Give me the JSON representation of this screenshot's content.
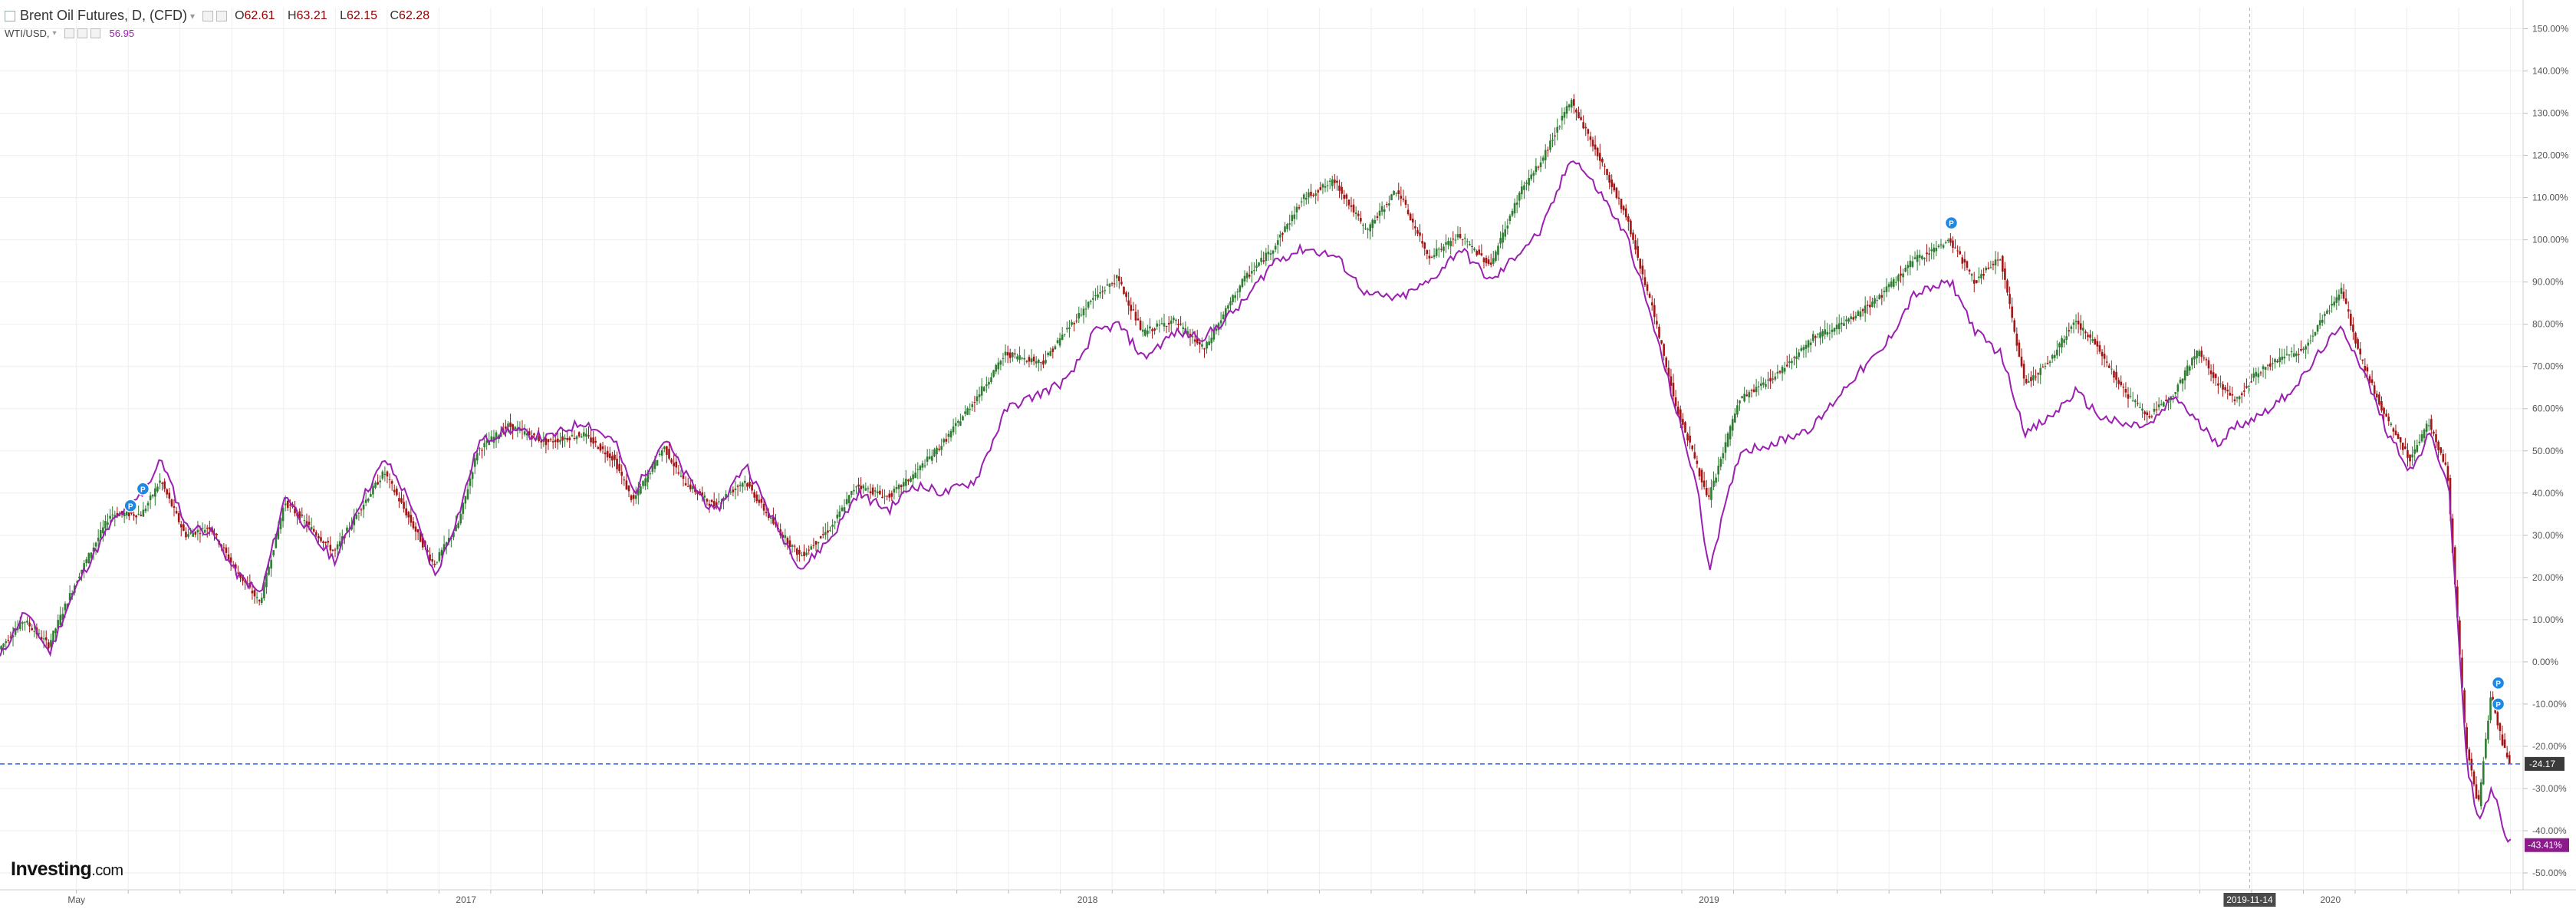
{
  "header": {
    "title": "Brent Oil Futures, D, (CFD)",
    "open_label": "O",
    "open": "62.61",
    "high_label": "H",
    "high": "63.21",
    "low_label": "L",
    "low": "62.15",
    "close_label": "C",
    "close": "62.28"
  },
  "compare": {
    "symbol": "WTI/USD,",
    "value": "56.95"
  },
  "logo": {
    "name": "Investing",
    "suffix": ".com"
  },
  "colors": {
    "up": "#2e7d32",
    "down": "#a31515",
    "compare_line": "#9b1fb0",
    "price_line": "#2962ff",
    "grid": "#eeeeee"
  },
  "chart_data": {
    "type": "line",
    "y_unit": "percent change",
    "y_ticks": [
      "150.00%",
      "140.00%",
      "130.00%",
      "120.00%",
      "110.00%",
      "100.00%",
      "90.00%",
      "80.00%",
      "70.00%",
      "60.00%",
      "50.00%",
      "40.00%",
      "30.00%",
      "20.00%",
      "10.00%",
      "0.00%",
      "-10.00%",
      "-20.00%",
      "-30.00%",
      "-40.00%",
      "-50.00%"
    ],
    "ylim": [
      -54,
      155
    ],
    "x_tick_labels": [
      {
        "label": "May",
        "x": 0.123
      },
      {
        "label": "2017",
        "x": 0.75
      },
      {
        "label": "2018",
        "x": 1.75
      },
      {
        "label": "2019",
        "x": 2.75
      },
      {
        "label": "2020",
        "x": 3.75
      }
    ],
    "x_range": [
      0.0,
      4.06
    ],
    "crosshair": {
      "label": "2019-11-14",
      "x": 3.62
    },
    "current_price_label": "-24.17",
    "compare_label": "-43.41%",
    "markers": [
      {
        "x": 0.23,
        "y": 41,
        "label": "P"
      },
      {
        "x": 0.21,
        "y": 37,
        "label": "P"
      },
      {
        "x": 3.14,
        "y": 104,
        "label": "P"
      },
      {
        "x": 4.02,
        "y": -5,
        "label": "P"
      },
      {
        "x": 4.02,
        "y": -10,
        "label": "P"
      }
    ],
    "series": [
      {
        "name": "Brent Oil Futures",
        "points": [
          [
            0.0,
            3
          ],
          [
            0.04,
            10
          ],
          [
            0.08,
            4
          ],
          [
            0.1,
            11
          ],
          [
            0.13,
            21
          ],
          [
            0.18,
            35
          ],
          [
            0.23,
            35
          ],
          [
            0.26,
            43
          ],
          [
            0.3,
            30
          ],
          [
            0.34,
            32
          ],
          [
            0.38,
            22
          ],
          [
            0.42,
            14
          ],
          [
            0.46,
            38
          ],
          [
            0.5,
            32
          ],
          [
            0.54,
            26
          ],
          [
            0.58,
            36
          ],
          [
            0.62,
            45
          ],
          [
            0.66,
            34
          ],
          [
            0.7,
            23
          ],
          [
            0.74,
            33
          ],
          [
            0.77,
            50
          ],
          [
            0.82,
            56
          ],
          [
            0.88,
            52
          ],
          [
            0.94,
            54
          ],
          [
            0.99,
            48
          ],
          [
            1.02,
            38
          ],
          [
            1.07,
            51
          ],
          [
            1.1,
            43
          ],
          [
            1.15,
            37
          ],
          [
            1.2,
            43
          ],
          [
            1.25,
            32
          ],
          [
            1.29,
            25
          ],
          [
            1.34,
            32
          ],
          [
            1.38,
            42
          ],
          [
            1.43,
            39
          ],
          [
            1.47,
            44
          ],
          [
            1.52,
            52
          ],
          [
            1.57,
            62
          ],
          [
            1.62,
            73
          ],
          [
            1.68,
            71
          ],
          [
            1.72,
            79
          ],
          [
            1.76,
            86
          ],
          [
            1.8,
            91
          ],
          [
            1.84,
            78
          ],
          [
            1.89,
            81
          ],
          [
            1.94,
            74
          ],
          [
            2.0,
            90
          ],
          [
            2.05,
            98
          ],
          [
            2.1,
            110
          ],
          [
            2.15,
            114
          ],
          [
            2.2,
            102
          ],
          [
            2.25,
            112
          ],
          [
            2.3,
            96
          ],
          [
            2.35,
            101
          ],
          [
            2.4,
            94
          ],
          [
            2.45,
            112
          ],
          [
            2.48,
            118
          ],
          [
            2.53,
            133
          ],
          [
            2.58,
            118
          ],
          [
            2.62,
            105
          ],
          [
            2.66,
            84
          ],
          [
            2.7,
            60
          ],
          [
            2.73,
            48
          ],
          [
            2.75,
            38
          ],
          [
            2.8,
            62
          ],
          [
            2.86,
            68
          ],
          [
            2.92,
            77
          ],
          [
            2.98,
            81
          ],
          [
            3.03,
            87
          ],
          [
            3.08,
            95
          ],
          [
            3.14,
            100
          ],
          [
            3.18,
            90
          ],
          [
            3.22,
            96
          ],
          [
            3.26,
            66
          ],
          [
            3.3,
            71
          ],
          [
            3.34,
            81
          ],
          [
            3.38,
            74
          ],
          [
            3.42,
            64
          ],
          [
            3.46,
            58
          ],
          [
            3.5,
            64
          ],
          [
            3.54,
            74
          ],
          [
            3.57,
            66
          ],
          [
            3.6,
            62
          ],
          [
            3.63,
            68
          ],
          [
            3.67,
            72
          ],
          [
            3.71,
            74
          ],
          [
            3.74,
            82
          ],
          [
            3.77,
            88
          ],
          [
            3.8,
            72
          ],
          [
            3.84,
            58
          ],
          [
            3.88,
            48
          ],
          [
            3.91,
            57
          ],
          [
            3.94,
            45
          ],
          [
            3.97,
            -20
          ],
          [
            3.99,
            -34
          ],
          [
            4.01,
            -8
          ],
          [
            4.03,
            -20
          ],
          [
            4.04,
            -24
          ]
        ]
      },
      {
        "name": "WTI/USD",
        "points": [
          [
            0.0,
            1
          ],
          [
            0.04,
            12
          ],
          [
            0.08,
            2
          ],
          [
            0.1,
            10
          ],
          [
            0.13,
            20
          ],
          [
            0.18,
            33
          ],
          [
            0.23,
            40
          ],
          [
            0.26,
            48
          ],
          [
            0.3,
            32
          ],
          [
            0.34,
            31
          ],
          [
            0.38,
            21
          ],
          [
            0.42,
            16
          ],
          [
            0.46,
            40
          ],
          [
            0.5,
            30
          ],
          [
            0.54,
            24
          ],
          [
            0.58,
            38
          ],
          [
            0.62,
            48
          ],
          [
            0.66,
            38
          ],
          [
            0.7,
            20
          ],
          [
            0.74,
            36
          ],
          [
            0.77,
            52
          ],
          [
            0.82,
            55
          ],
          [
            0.88,
            53
          ],
          [
            0.94,
            57
          ],
          [
            0.99,
            52
          ],
          [
            1.02,
            40
          ],
          [
            1.07,
            53
          ],
          [
            1.1,
            45
          ],
          [
            1.15,
            35
          ],
          [
            1.2,
            47
          ],
          [
            1.25,
            32
          ],
          [
            1.29,
            22
          ],
          [
            1.34,
            30
          ],
          [
            1.38,
            40
          ],
          [
            1.43,
            36
          ],
          [
            1.47,
            42
          ],
          [
            1.52,
            40
          ],
          [
            1.57,
            43
          ],
          [
            1.62,
            60
          ],
          [
            1.68,
            64
          ],
          [
            1.72,
            67
          ],
          [
            1.76,
            78
          ],
          [
            1.8,
            80
          ],
          [
            1.84,
            72
          ],
          [
            1.89,
            78
          ],
          [
            1.94,
            77
          ],
          [
            2.0,
            85
          ],
          [
            2.05,
            95
          ],
          [
            2.1,
            98
          ],
          [
            2.15,
            96
          ],
          [
            2.2,
            87
          ],
          [
            2.25,
            86
          ],
          [
            2.3,
            90
          ],
          [
            2.35,
            98
          ],
          [
            2.4,
            90
          ],
          [
            2.45,
            98
          ],
          [
            2.48,
            102
          ],
          [
            2.53,
            120
          ],
          [
            2.58,
            110
          ],
          [
            2.62,
            100
          ],
          [
            2.66,
            80
          ],
          [
            2.7,
            58
          ],
          [
            2.73,
            42
          ],
          [
            2.75,
            22
          ],
          [
            2.8,
            50
          ],
          [
            2.86,
            52
          ],
          [
            2.92,
            56
          ],
          [
            2.98,
            67
          ],
          [
            3.03,
            74
          ],
          [
            3.08,
            87
          ],
          [
            3.14,
            90
          ],
          [
            3.18,
            78
          ],
          [
            3.22,
            73
          ],
          [
            3.26,
            54
          ],
          [
            3.3,
            58
          ],
          [
            3.34,
            64
          ],
          [
            3.38,
            58
          ],
          [
            3.42,
            56
          ],
          [
            3.46,
            56
          ],
          [
            3.5,
            63
          ],
          [
            3.54,
            56
          ],
          [
            3.57,
            52
          ],
          [
            3.6,
            56
          ],
          [
            3.63,
            58
          ],
          [
            3.67,
            62
          ],
          [
            3.71,
            68
          ],
          [
            3.74,
            75
          ],
          [
            3.77,
            79
          ],
          [
            3.8,
            70
          ],
          [
            3.84,
            55
          ],
          [
            3.88,
            45
          ],
          [
            3.91,
            54
          ],
          [
            3.94,
            42
          ],
          [
            3.97,
            -25
          ],
          [
            3.99,
            -38
          ],
          [
            4.01,
            -30
          ],
          [
            4.03,
            -40
          ],
          [
            4.04,
            -43
          ]
        ]
      }
    ]
  }
}
